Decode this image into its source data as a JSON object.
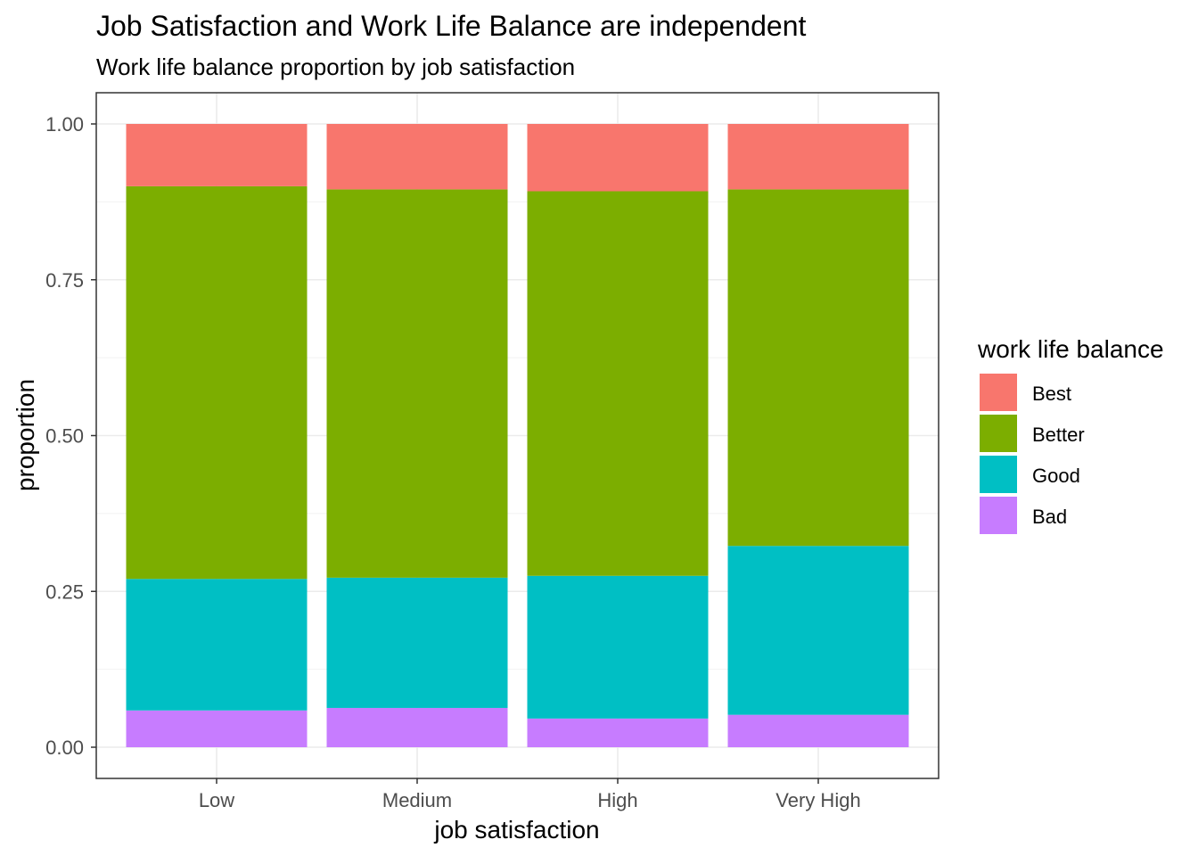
{
  "chart_data": {
    "type": "bar",
    "stacked": true,
    "title": "Job Satisfaction and Work Life Balance are independent",
    "subtitle": "Work life balance proportion by job satisfaction",
    "xlabel": "job satisfaction",
    "ylabel": "proportion",
    "ylim": [
      0,
      1
    ],
    "yticks": [
      "0.00",
      "0.25",
      "0.50",
      "0.75",
      "1.00"
    ],
    "ytick_values": [
      0,
      0.25,
      0.5,
      0.75,
      1.0
    ],
    "grid": true,
    "legend_position": "right",
    "legend_title": "work life balance",
    "categories": [
      "Low",
      "Medium",
      "High",
      "Very High"
    ],
    "series": [
      {
        "name": "Best",
        "color": "#F8766D",
        "values": [
          0.1,
          0.105,
          0.108,
          0.105
        ]
      },
      {
        "name": "Better",
        "color": "#7CAE00",
        "values": [
          0.63,
          0.623,
          0.617,
          0.572
        ]
      },
      {
        "name": "Good",
        "color": "#00BFC4",
        "values": [
          0.211,
          0.209,
          0.229,
          0.271
        ]
      },
      {
        "name": "Bad",
        "color": "#C77CFF",
        "values": [
          0.059,
          0.063,
          0.046,
          0.052
        ]
      }
    ]
  }
}
